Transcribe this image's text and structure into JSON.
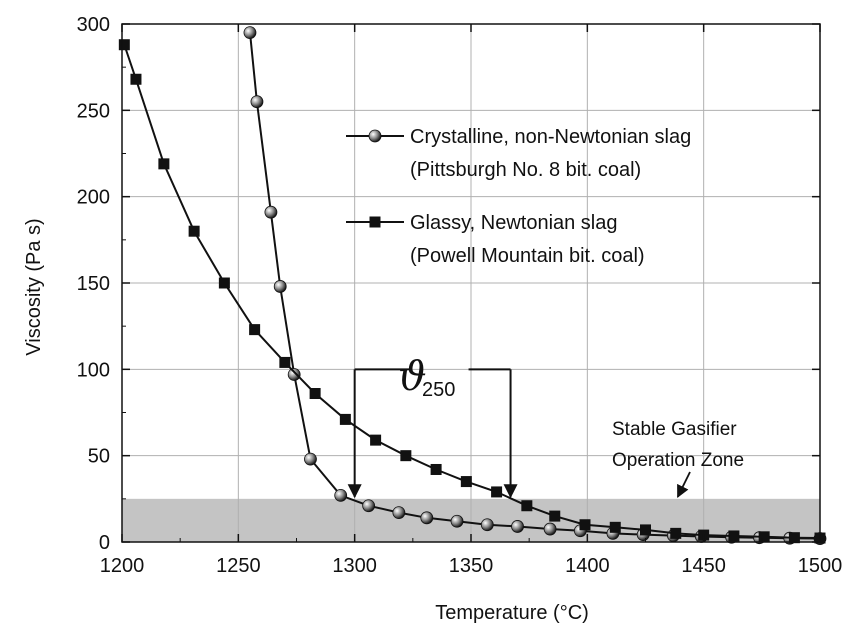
{
  "chart_data": {
    "type": "line",
    "xlabel": "Temperature (°C)",
    "ylabel": "Viscosity (Pa s)",
    "xlim": [
      1200,
      1500
    ],
    "ylim": [
      0,
      300
    ],
    "xticks": [
      1200,
      1250,
      1300,
      1350,
      1400,
      1450,
      1500
    ],
    "yticks": [
      0,
      50,
      100,
      150,
      200,
      250,
      300
    ],
    "grid": true,
    "legend_position": "top-right",
    "series": [
      {
        "name_line1": "Crystalline, non-Newtonian slag",
        "name_line2": "(Pittsburgh No. 8 bit. coal)",
        "marker": "circle",
        "points": [
          [
            1255,
            295
          ],
          [
            1258,
            255
          ],
          [
            1264,
            191
          ],
          [
            1268,
            148
          ],
          [
            1274,
            97
          ],
          [
            1281,
            48
          ],
          [
            1294,
            27
          ],
          [
            1306,
            21
          ],
          [
            1319,
            17
          ],
          [
            1331,
            14
          ],
          [
            1344,
            12
          ],
          [
            1357,
            10
          ],
          [
            1370,
            9
          ],
          [
            1384,
            7.5
          ],
          [
            1397,
            6.5
          ],
          [
            1411,
            5
          ],
          [
            1424,
            4.3
          ],
          [
            1437,
            3.7
          ],
          [
            1449,
            3.2
          ],
          [
            1462,
            2.8
          ],
          [
            1474,
            2.5
          ],
          [
            1487,
            2.2
          ],
          [
            1500,
            2
          ]
        ]
      },
      {
        "name_line1": "Glassy, Newtonian slag",
        "name_line2": "(Powell Mountain bit. coal)",
        "marker": "square",
        "points": [
          [
            1201,
            288
          ],
          [
            1206,
            268
          ],
          [
            1218,
            219
          ],
          [
            1231,
            180
          ],
          [
            1244,
            150
          ],
          [
            1257,
            123
          ],
          [
            1270,
            104
          ],
          [
            1283,
            86
          ],
          [
            1296,
            71
          ],
          [
            1309,
            59
          ],
          [
            1322,
            50
          ],
          [
            1335,
            42
          ],
          [
            1348,
            35
          ],
          [
            1361,
            29
          ],
          [
            1374,
            21
          ],
          [
            1386,
            15
          ],
          [
            1399,
            10
          ],
          [
            1412,
            8.5
          ],
          [
            1425,
            7
          ],
          [
            1438,
            5
          ],
          [
            1450,
            4
          ],
          [
            1463,
            3.5
          ],
          [
            1476,
            3
          ],
          [
            1489,
            2.5
          ],
          [
            1500,
            2.3
          ]
        ]
      }
    ],
    "shaded_band": {
      "ymin": 0,
      "ymax": 25,
      "label_line1": "Stable Gasifier",
      "label_line2": "Operation Zone",
      "arrow_target": [
        1438,
        25
      ]
    },
    "bracket": {
      "x_start": 1300,
      "x_end": 1367,
      "y_top": 100,
      "y_bottom": 25,
      "symbol": "ϑ",
      "subscript": "250"
    }
  }
}
